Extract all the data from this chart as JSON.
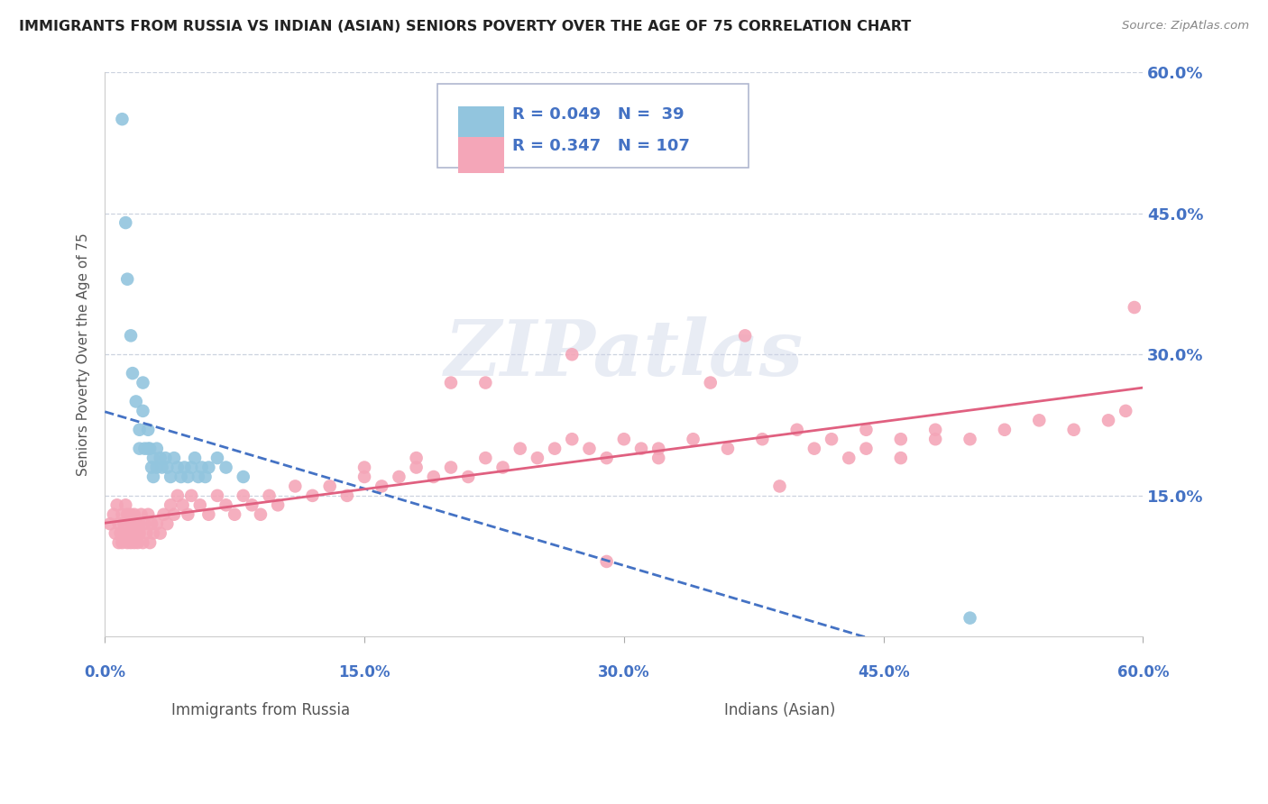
{
  "title": "IMMIGRANTS FROM RUSSIA VS INDIAN (ASIAN) SENIORS POVERTY OVER THE AGE OF 75 CORRELATION CHART",
  "source": "Source: ZipAtlas.com",
  "xlabel_russia": "Immigrants from Russia",
  "xlabel_indian": "Indians (Asian)",
  "ylabel": "Seniors Poverty Over the Age of 75",
  "xlim": [
    0.0,
    0.6
  ],
  "ylim": [
    0.0,
    0.6
  ],
  "yticks": [
    0.15,
    0.3,
    0.45,
    0.6
  ],
  "ytick_labels": [
    "15.0%",
    "30.0%",
    "45.0%",
    "60.0%"
  ],
  "xticks": [
    0.0,
    0.15,
    0.3,
    0.45,
    0.6
  ],
  "xtick_labels": [
    "0.0%",
    "15.0%",
    "30.0%",
    "45.0%",
    "60.0%"
  ],
  "legend_R1": "0.049",
  "legend_N1": "39",
  "legend_R2": "0.347",
  "legend_N2": "107",
  "color_russia": "#92C5DE",
  "color_indian": "#F4A6B8",
  "color_axis_labels": "#4472C4",
  "color_trend_russia": "#4472C4",
  "color_trend_indian": "#E06080",
  "background_color": "#ffffff",
  "russia_x": [
    0.01,
    0.012,
    0.013,
    0.015,
    0.016,
    0.018,
    0.02,
    0.02,
    0.022,
    0.022,
    0.023,
    0.025,
    0.025,
    0.026,
    0.027,
    0.028,
    0.028,
    0.03,
    0.03,
    0.032,
    0.033,
    0.035,
    0.036,
    0.038,
    0.04,
    0.042,
    0.044,
    0.046,
    0.048,
    0.05,
    0.052,
    0.054,
    0.056,
    0.058,
    0.06,
    0.065,
    0.07,
    0.08,
    0.5
  ],
  "russia_y": [
    0.55,
    0.44,
    0.38,
    0.32,
    0.28,
    0.25,
    0.22,
    0.2,
    0.27,
    0.24,
    0.2,
    0.2,
    0.22,
    0.2,
    0.18,
    0.19,
    0.17,
    0.2,
    0.18,
    0.19,
    0.18,
    0.19,
    0.18,
    0.17,
    0.19,
    0.18,
    0.17,
    0.18,
    0.17,
    0.18,
    0.19,
    0.17,
    0.18,
    0.17,
    0.18,
    0.19,
    0.18,
    0.17,
    0.02
  ],
  "indian_x": [
    0.003,
    0.005,
    0.006,
    0.007,
    0.008,
    0.008,
    0.009,
    0.01,
    0.01,
    0.011,
    0.012,
    0.012,
    0.013,
    0.013,
    0.014,
    0.015,
    0.015,
    0.015,
    0.016,
    0.016,
    0.017,
    0.017,
    0.018,
    0.018,
    0.019,
    0.02,
    0.02,
    0.021,
    0.022,
    0.023,
    0.024,
    0.025,
    0.026,
    0.027,
    0.028,
    0.03,
    0.032,
    0.034,
    0.036,
    0.038,
    0.04,
    0.042,
    0.045,
    0.048,
    0.05,
    0.055,
    0.06,
    0.065,
    0.07,
    0.075,
    0.08,
    0.085,
    0.09,
    0.095,
    0.1,
    0.11,
    0.12,
    0.13,
    0.14,
    0.15,
    0.16,
    0.17,
    0.18,
    0.19,
    0.2,
    0.21,
    0.22,
    0.23,
    0.24,
    0.25,
    0.26,
    0.27,
    0.28,
    0.3,
    0.32,
    0.34,
    0.36,
    0.38,
    0.4,
    0.42,
    0.44,
    0.46,
    0.48,
    0.5,
    0.52,
    0.54,
    0.56,
    0.58,
    0.59,
    0.595,
    0.29,
    0.31,
    0.35,
    0.27,
    0.41,
    0.43,
    0.29,
    0.32,
    0.2,
    0.44,
    0.46,
    0.37,
    0.48,
    0.39,
    0.15,
    0.18,
    0.22
  ],
  "indian_y": [
    0.12,
    0.13,
    0.11,
    0.14,
    0.1,
    0.12,
    0.11,
    0.13,
    0.1,
    0.12,
    0.11,
    0.14,
    0.1,
    0.13,
    0.11,
    0.1,
    0.12,
    0.13,
    0.11,
    0.12,
    0.1,
    0.13,
    0.11,
    0.12,
    0.1,
    0.12,
    0.11,
    0.13,
    0.1,
    0.12,
    0.11,
    0.13,
    0.1,
    0.12,
    0.11,
    0.12,
    0.11,
    0.13,
    0.12,
    0.14,
    0.13,
    0.15,
    0.14,
    0.13,
    0.15,
    0.14,
    0.13,
    0.15,
    0.14,
    0.13,
    0.15,
    0.14,
    0.13,
    0.15,
    0.14,
    0.16,
    0.15,
    0.16,
    0.15,
    0.17,
    0.16,
    0.17,
    0.18,
    0.17,
    0.18,
    0.17,
    0.19,
    0.18,
    0.2,
    0.19,
    0.2,
    0.21,
    0.2,
    0.21,
    0.2,
    0.21,
    0.2,
    0.21,
    0.22,
    0.21,
    0.22,
    0.21,
    0.22,
    0.21,
    0.22,
    0.23,
    0.22,
    0.23,
    0.24,
    0.35,
    0.19,
    0.2,
    0.27,
    0.3,
    0.2,
    0.19,
    0.08,
    0.19,
    0.27,
    0.2,
    0.19,
    0.32,
    0.21,
    0.16,
    0.18,
    0.19,
    0.27
  ]
}
